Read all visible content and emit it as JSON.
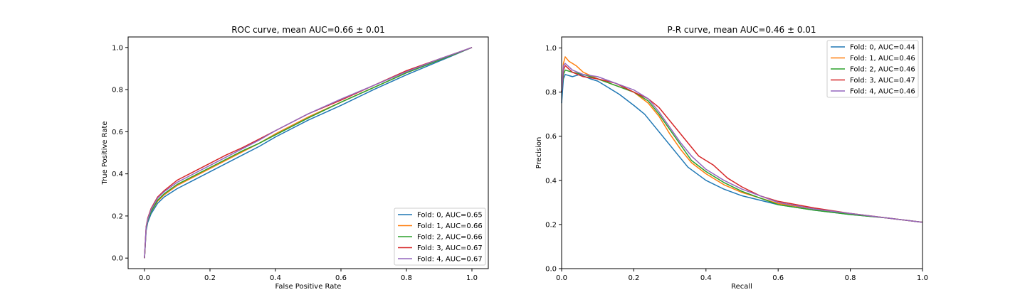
{
  "chart_data": [
    {
      "type": "line",
      "title": "ROC curve, mean AUC=0.66 ± 0.01",
      "xlabel": "False Positive Rate",
      "ylabel": "True Positive Rate",
      "xlim": [
        -0.05,
        1.05
      ],
      "ylim": [
        -0.05,
        1.05
      ],
      "xticks": [
        "0.0",
        "0.2",
        "0.4",
        "0.6",
        "0.8",
        "1.0"
      ],
      "yticks": [
        "0.0",
        "0.2",
        "0.4",
        "0.6",
        "0.8",
        "1.0"
      ],
      "grid": false,
      "legend_position": "lower-right",
      "series": [
        {
          "name": "Fold: 0, AUC=0.65",
          "color": "#1f77b4",
          "points": [
            [
              0,
              0
            ],
            [
              0.005,
              0.13
            ],
            [
              0.01,
              0.17
            ],
            [
              0.02,
              0.21
            ],
            [
              0.04,
              0.26
            ],
            [
              0.06,
              0.29
            ],
            [
              0.1,
              0.33
            ],
            [
              0.15,
              0.37
            ],
            [
              0.2,
              0.41
            ],
            [
              0.25,
              0.45
            ],
            [
              0.3,
              0.49
            ],
            [
              0.35,
              0.53
            ],
            [
              0.4,
              0.575
            ],
            [
              0.5,
              0.655
            ],
            [
              0.6,
              0.725
            ],
            [
              0.7,
              0.8
            ],
            [
              0.8,
              0.87
            ],
            [
              0.9,
              0.935
            ],
            [
              1,
              1
            ]
          ]
        },
        {
          "name": "Fold: 1, AUC=0.66",
          "color": "#ff7f0e",
          "points": [
            [
              0,
              0
            ],
            [
              0.005,
              0.14
            ],
            [
              0.01,
              0.18
            ],
            [
              0.02,
              0.22
            ],
            [
              0.04,
              0.27
            ],
            [
              0.06,
              0.3
            ],
            [
              0.1,
              0.345
            ],
            [
              0.15,
              0.385
            ],
            [
              0.2,
              0.425
            ],
            [
              0.25,
              0.465
            ],
            [
              0.3,
              0.505
            ],
            [
              0.35,
              0.545
            ],
            [
              0.4,
              0.59
            ],
            [
              0.5,
              0.67
            ],
            [
              0.6,
              0.74
            ],
            [
              0.7,
              0.81
            ],
            [
              0.8,
              0.88
            ],
            [
              0.9,
              0.94
            ],
            [
              1,
              1
            ]
          ]
        },
        {
          "name": "Fold: 2, AUC=0.66",
          "color": "#2ca02c",
          "points": [
            [
              0,
              0
            ],
            [
              0.005,
              0.14
            ],
            [
              0.01,
              0.18
            ],
            [
              0.02,
              0.22
            ],
            [
              0.04,
              0.275
            ],
            [
              0.06,
              0.305
            ],
            [
              0.1,
              0.35
            ],
            [
              0.15,
              0.39
            ],
            [
              0.2,
              0.43
            ],
            [
              0.25,
              0.47
            ],
            [
              0.3,
              0.51
            ],
            [
              0.35,
              0.545
            ],
            [
              0.4,
              0.585
            ],
            [
              0.5,
              0.665
            ],
            [
              0.6,
              0.74
            ],
            [
              0.7,
              0.81
            ],
            [
              0.8,
              0.88
            ],
            [
              0.9,
              0.94
            ],
            [
              1,
              1
            ]
          ]
        },
        {
          "name": "Fold: 3, AUC=0.67",
          "color": "#d62728",
          "points": [
            [
              0,
              0
            ],
            [
              0.005,
              0.15
            ],
            [
              0.01,
              0.19
            ],
            [
              0.02,
              0.235
            ],
            [
              0.04,
              0.29
            ],
            [
              0.06,
              0.32
            ],
            [
              0.1,
              0.37
            ],
            [
              0.15,
              0.41
            ],
            [
              0.2,
              0.45
            ],
            [
              0.25,
              0.49
            ],
            [
              0.3,
              0.525
            ],
            [
              0.35,
              0.565
            ],
            [
              0.4,
              0.605
            ],
            [
              0.5,
              0.685
            ],
            [
              0.6,
              0.75
            ],
            [
              0.7,
              0.82
            ],
            [
              0.8,
              0.89
            ],
            [
              0.9,
              0.945
            ],
            [
              1,
              1
            ]
          ]
        },
        {
          "name": "Fold: 4, AUC=0.67",
          "color": "#9467bd",
          "points": [
            [
              0,
              0
            ],
            [
              0.005,
              0.145
            ],
            [
              0.01,
              0.185
            ],
            [
              0.02,
              0.23
            ],
            [
              0.04,
              0.285
            ],
            [
              0.06,
              0.315
            ],
            [
              0.1,
              0.36
            ],
            [
              0.15,
              0.4
            ],
            [
              0.2,
              0.44
            ],
            [
              0.25,
              0.48
            ],
            [
              0.3,
              0.52
            ],
            [
              0.35,
              0.56
            ],
            [
              0.4,
              0.605
            ],
            [
              0.5,
              0.685
            ],
            [
              0.6,
              0.755
            ],
            [
              0.7,
              0.82
            ],
            [
              0.8,
              0.885
            ],
            [
              0.9,
              0.945
            ],
            [
              1,
              1
            ]
          ]
        }
      ]
    },
    {
      "type": "line",
      "title": "P-R curve, mean AUC=0.46 ± 0.01",
      "xlabel": "Recall",
      "ylabel": "Precision",
      "xlim": [
        0,
        1
      ],
      "ylim": [
        0,
        1.05
      ],
      "xticks": [
        "0.0",
        "0.2",
        "0.4",
        "0.6",
        "0.8",
        "1.0"
      ],
      "yticks": [
        "0.0",
        "0.2",
        "0.4",
        "0.6",
        "0.8",
        "1.0"
      ],
      "grid": false,
      "legend_position": "upper-right",
      "series": [
        {
          "name": "Fold: 0, AUC=0.44",
          "color": "#1f77b4",
          "points": [
            [
              0,
              0.75
            ],
            [
              0.005,
              0.86
            ],
            [
              0.01,
              0.88
            ],
            [
              0.03,
              0.87
            ],
            [
              0.05,
              0.88
            ],
            [
              0.08,
              0.86
            ],
            [
              0.1,
              0.85
            ],
            [
              0.13,
              0.82
            ],
            [
              0.16,
              0.79
            ],
            [
              0.2,
              0.74
            ],
            [
              0.23,
              0.7
            ],
            [
              0.26,
              0.64
            ],
            [
              0.29,
              0.58
            ],
            [
              0.32,
              0.52
            ],
            [
              0.35,
              0.46
            ],
            [
              0.4,
              0.4
            ],
            [
              0.45,
              0.36
            ],
            [
              0.5,
              0.33
            ],
            [
              0.55,
              0.31
            ],
            [
              0.6,
              0.29
            ],
            [
              0.7,
              0.265
            ],
            [
              0.8,
              0.245
            ],
            [
              0.9,
              0.23
            ],
            [
              1,
              0.21
            ]
          ]
        },
        {
          "name": "Fold: 1, AUC=0.46",
          "color": "#ff7f0e",
          "points": [
            [
              0,
              0.8
            ],
            [
              0.005,
              0.93
            ],
            [
              0.01,
              0.96
            ],
            [
              0.02,
              0.94
            ],
            [
              0.04,
              0.92
            ],
            [
              0.06,
              0.89
            ],
            [
              0.1,
              0.86
            ],
            [
              0.15,
              0.83
            ],
            [
              0.2,
              0.8
            ],
            [
              0.24,
              0.75
            ],
            [
              0.27,
              0.69
            ],
            [
              0.3,
              0.61
            ],
            [
              0.33,
              0.54
            ],
            [
              0.36,
              0.48
            ],
            [
              0.4,
              0.43
            ],
            [
              0.45,
              0.38
            ],
            [
              0.5,
              0.345
            ],
            [
              0.55,
              0.32
            ],
            [
              0.6,
              0.295
            ],
            [
              0.7,
              0.27
            ],
            [
              0.8,
              0.25
            ],
            [
              0.9,
              0.23
            ],
            [
              1,
              0.21
            ]
          ]
        },
        {
          "name": "Fold: 2, AUC=0.46",
          "color": "#2ca02c",
          "points": [
            [
              0,
              0.8
            ],
            [
              0.005,
              0.88
            ],
            [
              0.01,
              0.9
            ],
            [
              0.03,
              0.89
            ],
            [
              0.06,
              0.88
            ],
            [
              0.1,
              0.86
            ],
            [
              0.15,
              0.83
            ],
            [
              0.2,
              0.8
            ],
            [
              0.24,
              0.76
            ],
            [
              0.27,
              0.7
            ],
            [
              0.3,
              0.63
            ],
            [
              0.33,
              0.56
            ],
            [
              0.36,
              0.49
            ],
            [
              0.4,
              0.44
            ],
            [
              0.45,
              0.39
            ],
            [
              0.5,
              0.35
            ],
            [
              0.55,
              0.32
            ],
            [
              0.6,
              0.29
            ],
            [
              0.7,
              0.265
            ],
            [
              0.8,
              0.245
            ],
            [
              0.9,
              0.23
            ],
            [
              1,
              0.21
            ]
          ]
        },
        {
          "name": "Fold: 3, AUC=0.47",
          "color": "#d62728",
          "points": [
            [
              0,
              0.8
            ],
            [
              0.005,
              0.9
            ],
            [
              0.01,
              0.92
            ],
            [
              0.03,
              0.89
            ],
            [
              0.06,
              0.87
            ],
            [
              0.1,
              0.86
            ],
            [
              0.15,
              0.84
            ],
            [
              0.2,
              0.8
            ],
            [
              0.24,
              0.77
            ],
            [
              0.27,
              0.73
            ],
            [
              0.3,
              0.67
            ],
            [
              0.33,
              0.61
            ],
            [
              0.36,
              0.55
            ],
            [
              0.38,
              0.51
            ],
            [
              0.42,
              0.47
            ],
            [
              0.46,
              0.41
            ],
            [
              0.5,
              0.37
            ],
            [
              0.55,
              0.33
            ],
            [
              0.6,
              0.305
            ],
            [
              0.7,
              0.275
            ],
            [
              0.8,
              0.25
            ],
            [
              0.9,
              0.23
            ],
            [
              1,
              0.21
            ]
          ]
        },
        {
          "name": "Fold: 4, AUC=0.46",
          "color": "#9467bd",
          "points": [
            [
              0,
              0.8
            ],
            [
              0.005,
              0.92
            ],
            [
              0.01,
              0.93
            ],
            [
              0.03,
              0.9
            ],
            [
              0.06,
              0.88
            ],
            [
              0.1,
              0.87
            ],
            [
              0.15,
              0.84
            ],
            [
              0.2,
              0.81
            ],
            [
              0.24,
              0.77
            ],
            [
              0.27,
              0.71
            ],
            [
              0.3,
              0.64
            ],
            [
              0.33,
              0.57
            ],
            [
              0.36,
              0.51
            ],
            [
              0.4,
              0.45
            ],
            [
              0.45,
              0.4
            ],
            [
              0.5,
              0.36
            ],
            [
              0.55,
              0.33
            ],
            [
              0.6,
              0.3
            ],
            [
              0.7,
              0.27
            ],
            [
              0.8,
              0.25
            ],
            [
              0.9,
              0.23
            ],
            [
              1,
              0.21
            ]
          ]
        }
      ]
    }
  ]
}
